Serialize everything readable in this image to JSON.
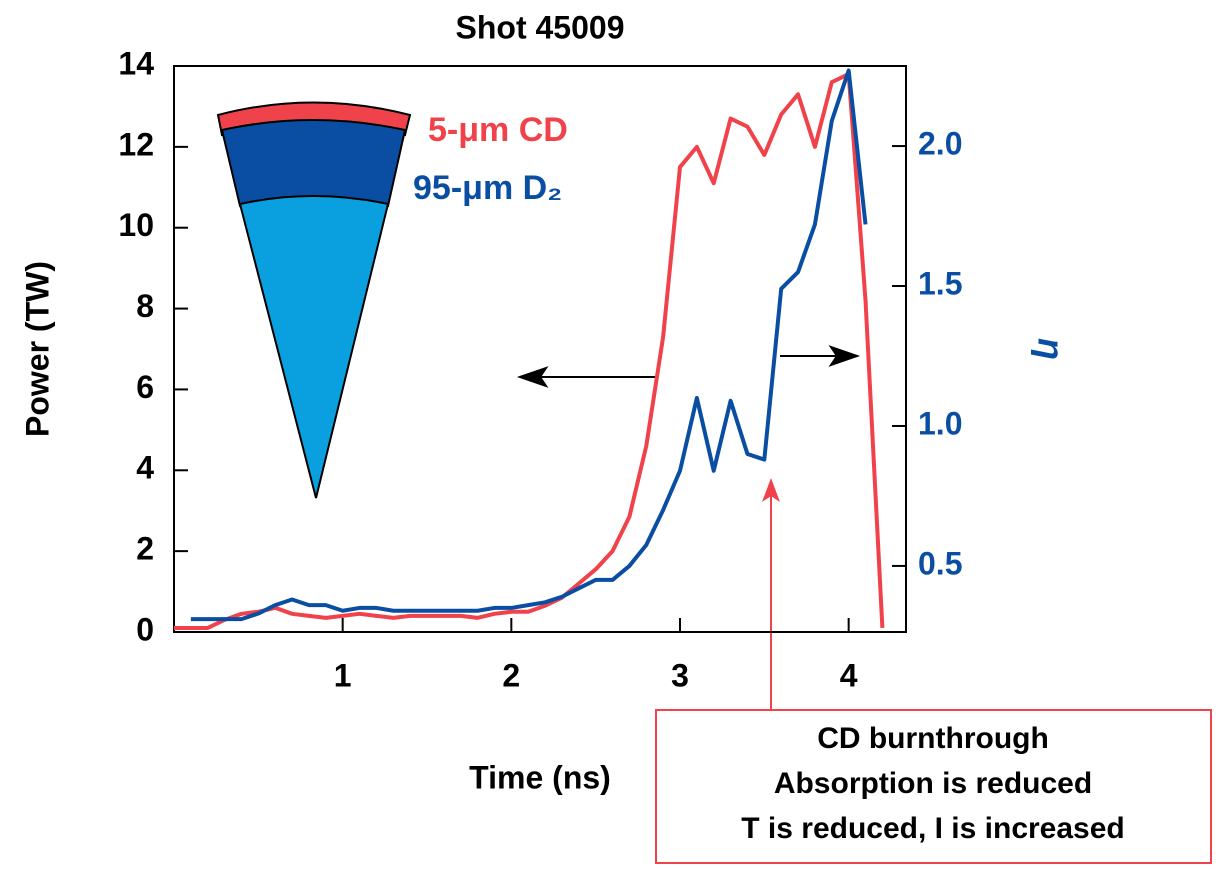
{
  "chart_data": {
    "type": "line",
    "title": "Shot 45009",
    "x_label": "Time (ns)",
    "y_label": "Power (TW)",
    "y2_label": "η",
    "xlim": [
      0,
      4.34
    ],
    "xticks": [
      1,
      2,
      3,
      4
    ],
    "ylim": [
      0,
      14
    ],
    "yticks": [
      0,
      2,
      4,
      6,
      8,
      10,
      12,
      14
    ],
    "y2lim": [
      0.264,
      2.286
    ],
    "y2ticks": [
      0.5,
      {
        "value": 1,
        "label": "1.0"
      },
      1.5,
      {
        "value": 2,
        "label": "2.0"
      }
    ],
    "series": [
      {
        "name": "5-μm CD",
        "color": "#f0424a",
        "x": [
          0,
          0.1,
          0.2,
          0.3,
          0.4,
          0.5,
          0.6,
          0.7,
          0.8,
          0.9,
          1.0,
          1.1,
          1.2,
          1.3,
          1.4,
          1.5,
          1.6,
          1.7,
          1.8,
          1.9,
          2.0,
          2.1,
          2.2,
          2.3,
          2.4,
          2.5,
          2.6,
          2.7,
          2.8,
          2.9,
          3.0,
          3.1,
          3.2,
          3.3,
          3.4,
          3.5,
          3.6,
          3.7,
          3.8,
          3.9,
          4.0,
          4.1,
          4.2
        ],
        "values": [
          0.1,
          0.1,
          0.1,
          0.3,
          0.45,
          0.5,
          0.6,
          0.45,
          0.4,
          0.35,
          0.4,
          0.45,
          0.4,
          0.35,
          0.4,
          0.4,
          0.4,
          0.4,
          0.35,
          0.45,
          0.5,
          0.5,
          0.65,
          0.85,
          1.2,
          1.55,
          2.0,
          2.85,
          4.6,
          7.3,
          11.5,
          12.0,
          11.1,
          12.7,
          12.5,
          11.8,
          12.8,
          13.3,
          12.0,
          13.6,
          13.8,
          8.2,
          0.1
        ]
      },
      {
        "name": "95-μm D₂",
        "color": "#0a4ea3",
        "axis": "y2",
        "x": [
          0.1,
          0.4,
          0.5,
          0.6,
          0.7,
          0.8,
          0.9,
          1.0,
          1.1,
          1.2,
          1.3,
          1.4,
          1.5,
          1.6,
          1.7,
          1.8,
          1.9,
          2.0,
          2.1,
          2.2,
          2.3,
          2.4,
          2.5,
          2.6,
          2.7,
          2.8,
          2.9,
          3.0,
          3.1,
          3.2,
          3.3,
          3.4,
          3.5,
          3.6,
          3.7,
          3.8,
          3.9,
          4.0,
          4.1
        ],
        "values": [
          0.31,
          0.31,
          0.33,
          0.36,
          0.38,
          0.36,
          0.36,
          0.34,
          0.35,
          0.35,
          0.34,
          0.34,
          0.34,
          0.34,
          0.34,
          0.34,
          0.35,
          0.35,
          0.36,
          0.37,
          0.39,
          0.42,
          0.45,
          0.45,
          0.5,
          0.575,
          0.7,
          0.84,
          1.1,
          0.84,
          1.09,
          0.9,
          0.88,
          1.49,
          1.55,
          1.72,
          2.09,
          2.27,
          1.72
        ]
      }
    ],
    "annotation": {
      "lines": [
        "CD burnthrough",
        "Absorption is reduced",
        "T is reduced, I is increased"
      ]
    }
  }
}
